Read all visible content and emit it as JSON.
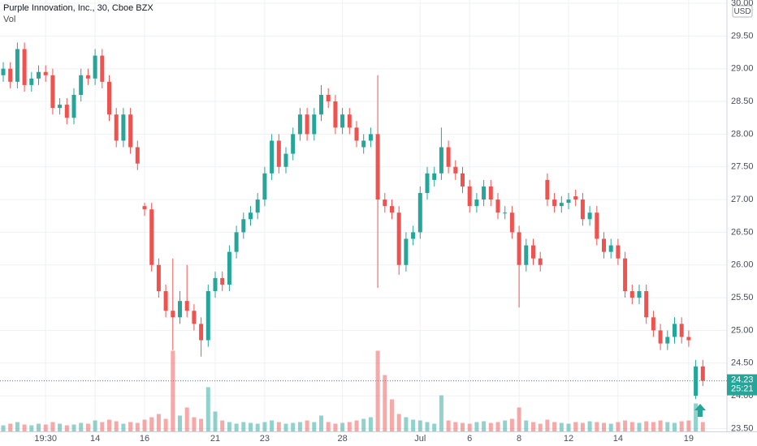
{
  "chart_data": {
    "type": "candlestick",
    "title": "Purple Innovation, Inc., 30, Cboe BZX",
    "volume_label": "Vol",
    "currency": "USD",
    "last_price": 24.23,
    "countdown": "25:21",
    "up_color": "#26a69a",
    "down_color": "#ef5350",
    "grid": true,
    "ylim": [
      23.45,
      30.05
    ],
    "yticks": [
      {
        "value": 23.5,
        "label": "23.50"
      },
      {
        "value": 24,
        "label": "24.00"
      },
      {
        "value": 24.5,
        "label": "24.50"
      },
      {
        "value": 25,
        "label": "25.00"
      },
      {
        "value": 25.5,
        "label": "25.50"
      },
      {
        "value": 26,
        "label": "26.00"
      },
      {
        "value": 26.5,
        "label": "26.50"
      },
      {
        "value": 27,
        "label": "27.00"
      },
      {
        "value": 27.5,
        "label": "27.50"
      },
      {
        "value": 28,
        "label": "28.00"
      },
      {
        "value": 28.5,
        "label": "28.50"
      },
      {
        "value": 29,
        "label": "29.00"
      },
      {
        "value": 29.5,
        "label": "29.50"
      },
      {
        "value": 30,
        "label": "30.00"
      }
    ],
    "xticks": [
      {
        "value": 6,
        "label": "19:30"
      },
      {
        "value": 13,
        "label": "14"
      },
      {
        "value": 20,
        "label": "16"
      },
      {
        "value": 30,
        "label": "21"
      },
      {
        "value": 37,
        "label": "23"
      },
      {
        "value": 48,
        "label": "28"
      },
      {
        "value": 59,
        "label": "Jul"
      },
      {
        "value": 66,
        "label": "6"
      },
      {
        "value": 73,
        "label": "8"
      },
      {
        "value": 80,
        "label": "12"
      },
      {
        "value": 87,
        "label": "14"
      },
      {
        "value": 97,
        "label": "19"
      }
    ],
    "open": [
      28.9,
      29.0,
      28.8,
      29.3,
      28.75,
      28.85,
      28.95,
      28.9,
      28.4,
      28.45,
      28.25,
      28.6,
      28.9,
      28.85,
      29.2,
      28.8,
      28.3,
      27.9,
      28.3,
      27.8,
      26.9,
      26.85,
      26.0,
      25.6,
      25.3,
      25.2,
      25.45,
      25.3,
      25.1,
      24.85,
      25.6,
      25.8,
      25.7,
      26.2,
      26.5,
      26.7,
      26.8,
      27.0,
      27.4,
      27.9,
      27.5,
      27.7,
      28.0,
      28.3,
      28.0,
      28.3,
      28.6,
      28.5,
      28.1,
      28.3,
      28.1,
      27.8,
      27.9,
      28.0,
      27.0,
      26.9,
      26.8,
      26.0,
      26.4,
      26.5,
      27.1,
      27.3,
      27.4,
      27.8,
      27.5,
      27.4,
      27.2,
      26.9,
      27.0,
      27.2,
      27.0,
      26.8,
      26.8,
      26.5,
      26.0,
      26.3,
      26.1,
      27.3,
      27.0,
      26.9,
      26.95,
      27.05,
      27.0,
      26.7,
      26.8,
      26.4,
      26.2,
      26.3,
      26.1,
      25.6,
      25.5,
      25.6,
      25.2,
      25.0,
      24.8,
      24.9,
      25.1,
      24.9,
      24.0,
      24.45
    ],
    "high": [
      29.1,
      29.1,
      29.4,
      29.4,
      28.95,
      29.05,
      29.05,
      29.0,
      28.55,
      28.55,
      28.7,
      29.0,
      29.0,
      29.3,
      29.3,
      28.9,
      28.4,
      28.4,
      28.4,
      27.9,
      26.95,
      26.95,
      26.1,
      25.7,
      26.1,
      25.6,
      26.0,
      25.4,
      25.2,
      25.7,
      25.9,
      25.9,
      26.3,
      26.6,
      26.8,
      26.9,
      27.1,
      27.5,
      28.0,
      28.0,
      27.8,
      28.1,
      28.4,
      28.4,
      28.4,
      28.75,
      28.7,
      28.6,
      28.4,
      28.4,
      28.2,
      28.0,
      28.1,
      28.9,
      27.1,
      27.0,
      26.9,
      26.5,
      26.6,
      27.2,
      27.5,
      27.5,
      28.1,
      27.9,
      27.6,
      27.5,
      27.3,
      27.1,
      27.3,
      27.3,
      27.1,
      26.9,
      26.9,
      26.6,
      26.4,
      26.4,
      26.2,
      27.4,
      27.1,
      27.05,
      27.1,
      27.15,
      27.1,
      26.9,
      26.9,
      26.5,
      26.4,
      26.4,
      26.2,
      25.7,
      25.7,
      25.7,
      25.3,
      25.1,
      25.0,
      25.2,
      25.2,
      25.0,
      24.55,
      24.55
    ],
    "low": [
      28.8,
      28.7,
      28.7,
      28.65,
      28.65,
      28.75,
      28.8,
      28.3,
      28.3,
      28.15,
      28.15,
      28.5,
      28.75,
      28.75,
      28.7,
      28.2,
      27.8,
      27.8,
      27.7,
      27.45,
      26.75,
      25.9,
      25.5,
      25.2,
      24.7,
      25.1,
      25.2,
      25.0,
      24.6,
      24.75,
      25.5,
      25.6,
      25.6,
      26.1,
      26.4,
      26.6,
      26.7,
      26.9,
      27.3,
      27.4,
      27.4,
      27.6,
      27.9,
      27.9,
      27.9,
      28.2,
      28.4,
      28.0,
      28.0,
      28.0,
      27.8,
      27.7,
      27.8,
      25.65,
      26.8,
      26.7,
      25.85,
      25.9,
      26.3,
      26.4,
      27.0,
      27.2,
      27.3,
      27.4,
      27.3,
      27.1,
      26.8,
      26.8,
      26.9,
      26.9,
      26.7,
      26.7,
      26.4,
      25.35,
      25.9,
      26.0,
      25.9,
      26.9,
      26.8,
      26.8,
      26.85,
      26.9,
      26.6,
      26.6,
      26.3,
      26.1,
      26.1,
      26.0,
      25.5,
      25.4,
      25.4,
      25.1,
      24.9,
      24.7,
      24.7,
      24.8,
      24.8,
      24.75,
      23.95,
      24.15
    ],
    "close": [
      29.0,
      28.8,
      29.3,
      28.75,
      28.85,
      28.95,
      28.9,
      28.4,
      28.45,
      28.25,
      28.6,
      28.9,
      28.85,
      29.2,
      28.8,
      28.3,
      27.9,
      28.3,
      27.8,
      27.55,
      26.85,
      26.0,
      25.6,
      25.3,
      25.2,
      25.45,
      25.3,
      25.1,
      24.85,
      25.6,
      25.8,
      25.7,
      26.2,
      26.5,
      26.7,
      26.8,
      27.0,
      27.4,
      27.9,
      27.5,
      27.7,
      28.0,
      28.3,
      28.0,
      28.3,
      28.6,
      28.5,
      28.1,
      28.3,
      28.1,
      27.9,
      27.9,
      28.0,
      27.0,
      26.9,
      26.8,
      26.0,
      26.4,
      26.5,
      27.1,
      27.4,
      27.4,
      27.8,
      27.5,
      27.4,
      27.2,
      26.9,
      27.0,
      27.2,
      27.0,
      26.8,
      26.8,
      26.5,
      26.0,
      26.3,
      26.1,
      26.0,
      27.0,
      26.9,
      26.95,
      27.0,
      27.0,
      26.7,
      26.8,
      26.4,
      26.2,
      26.3,
      26.1,
      25.6,
      25.5,
      25.6,
      25.2,
      25.0,
      24.8,
      24.9,
      25.1,
      24.9,
      24.85,
      24.45,
      24.23
    ],
    "volume": [
      8,
      10,
      12,
      9,
      8,
      10,
      9,
      12,
      10,
      8,
      9,
      11,
      10,
      14,
      12,
      15,
      13,
      10,
      12,
      11,
      15,
      18,
      22,
      16,
      100,
      20,
      30,
      18,
      16,
      55,
      25,
      14,
      12,
      10,
      12,
      11,
      10,
      12,
      14,
      12,
      10,
      11,
      12,
      14,
      12,
      20,
      12,
      10,
      11,
      12,
      14,
      16,
      18,
      100,
      70,
      40,
      22,
      18,
      15,
      14,
      12,
      10,
      45,
      14,
      12,
      11,
      10,
      12,
      13,
      11,
      12,
      14,
      16,
      30,
      14,
      12,
      10,
      15,
      12,
      11,
      10,
      12,
      11,
      13,
      12,
      11,
      10,
      12,
      14,
      12,
      11,
      13,
      12,
      14,
      12,
      11,
      13,
      14,
      35,
      12
    ]
  }
}
